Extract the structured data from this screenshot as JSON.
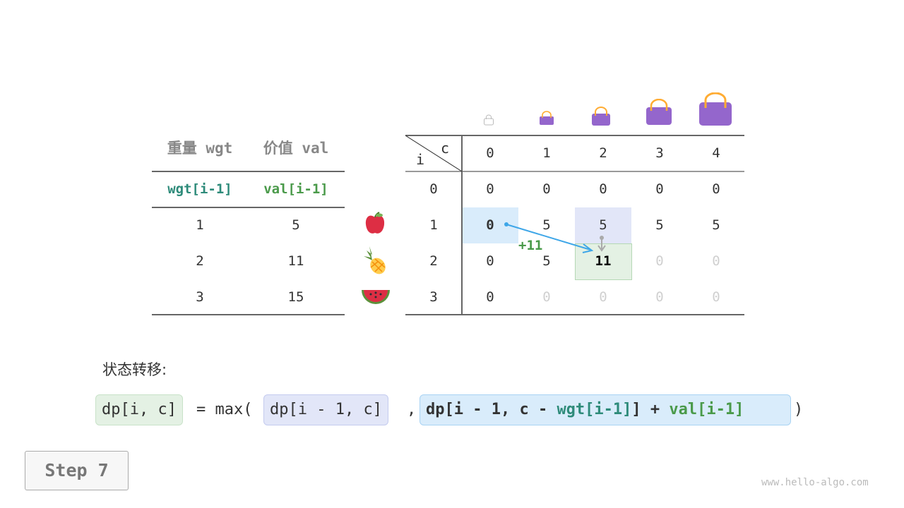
{
  "items_table": {
    "headers": [
      "重量 wgt",
      "价值 val"
    ],
    "subheaders": [
      "wgt[i-1]",
      "val[i-1]"
    ],
    "rows": [
      {
        "wgt": "1",
        "val": "5",
        "icon": "apple-icon"
      },
      {
        "wgt": "2",
        "val": "11",
        "icon": "pineapple-icon"
      },
      {
        "wgt": "3",
        "val": "15",
        "icon": "watermelon-icon"
      }
    ]
  },
  "dp_table": {
    "corner_c": "c",
    "corner_i": "i",
    "capacities": [
      "0",
      "1",
      "2",
      "3",
      "4"
    ],
    "row_labels": [
      "0",
      "1",
      "2",
      "3"
    ],
    "rows": [
      [
        "0",
        "0",
        "0",
        "0",
        "0"
      ],
      [
        "0",
        "5",
        "5",
        "5",
        "5"
      ],
      [
        "0",
        "5",
        "11",
        "0",
        "0"
      ],
      [
        "0",
        "0",
        "0",
        "0",
        "0"
      ]
    ],
    "filled": [
      [
        true,
        true,
        true,
        true,
        true
      ],
      [
        true,
        true,
        true,
        true,
        true
      ],
      [
        true,
        true,
        true,
        false,
        false
      ],
      [
        true,
        false,
        false,
        false,
        false
      ]
    ],
    "plus_label": "+11"
  },
  "formula": {
    "label": "状态转移:",
    "lhs": "dp[i, c]",
    "eq": "= max(",
    "opt1": "dp[i - 1, c]",
    "comma": ",",
    "opt2_a": "dp[i - 1, c - ",
    "opt2_wgt": "wgt[i-1]",
    "opt2_b": "] + ",
    "opt2_val": "val[i-1]",
    "close": ")"
  },
  "step_label": "Step 7",
  "watermark": "www.hello-algo.com",
  "colors": {
    "teal": "#2e8b7a",
    "green": "#4a9a4a",
    "blue": "#3ea6e8",
    "highlight_blue": "#d9ecfb",
    "highlight_purple": "#e2e6f8",
    "highlight_green": "#e4f1e4",
    "bag": "#9466cc"
  }
}
